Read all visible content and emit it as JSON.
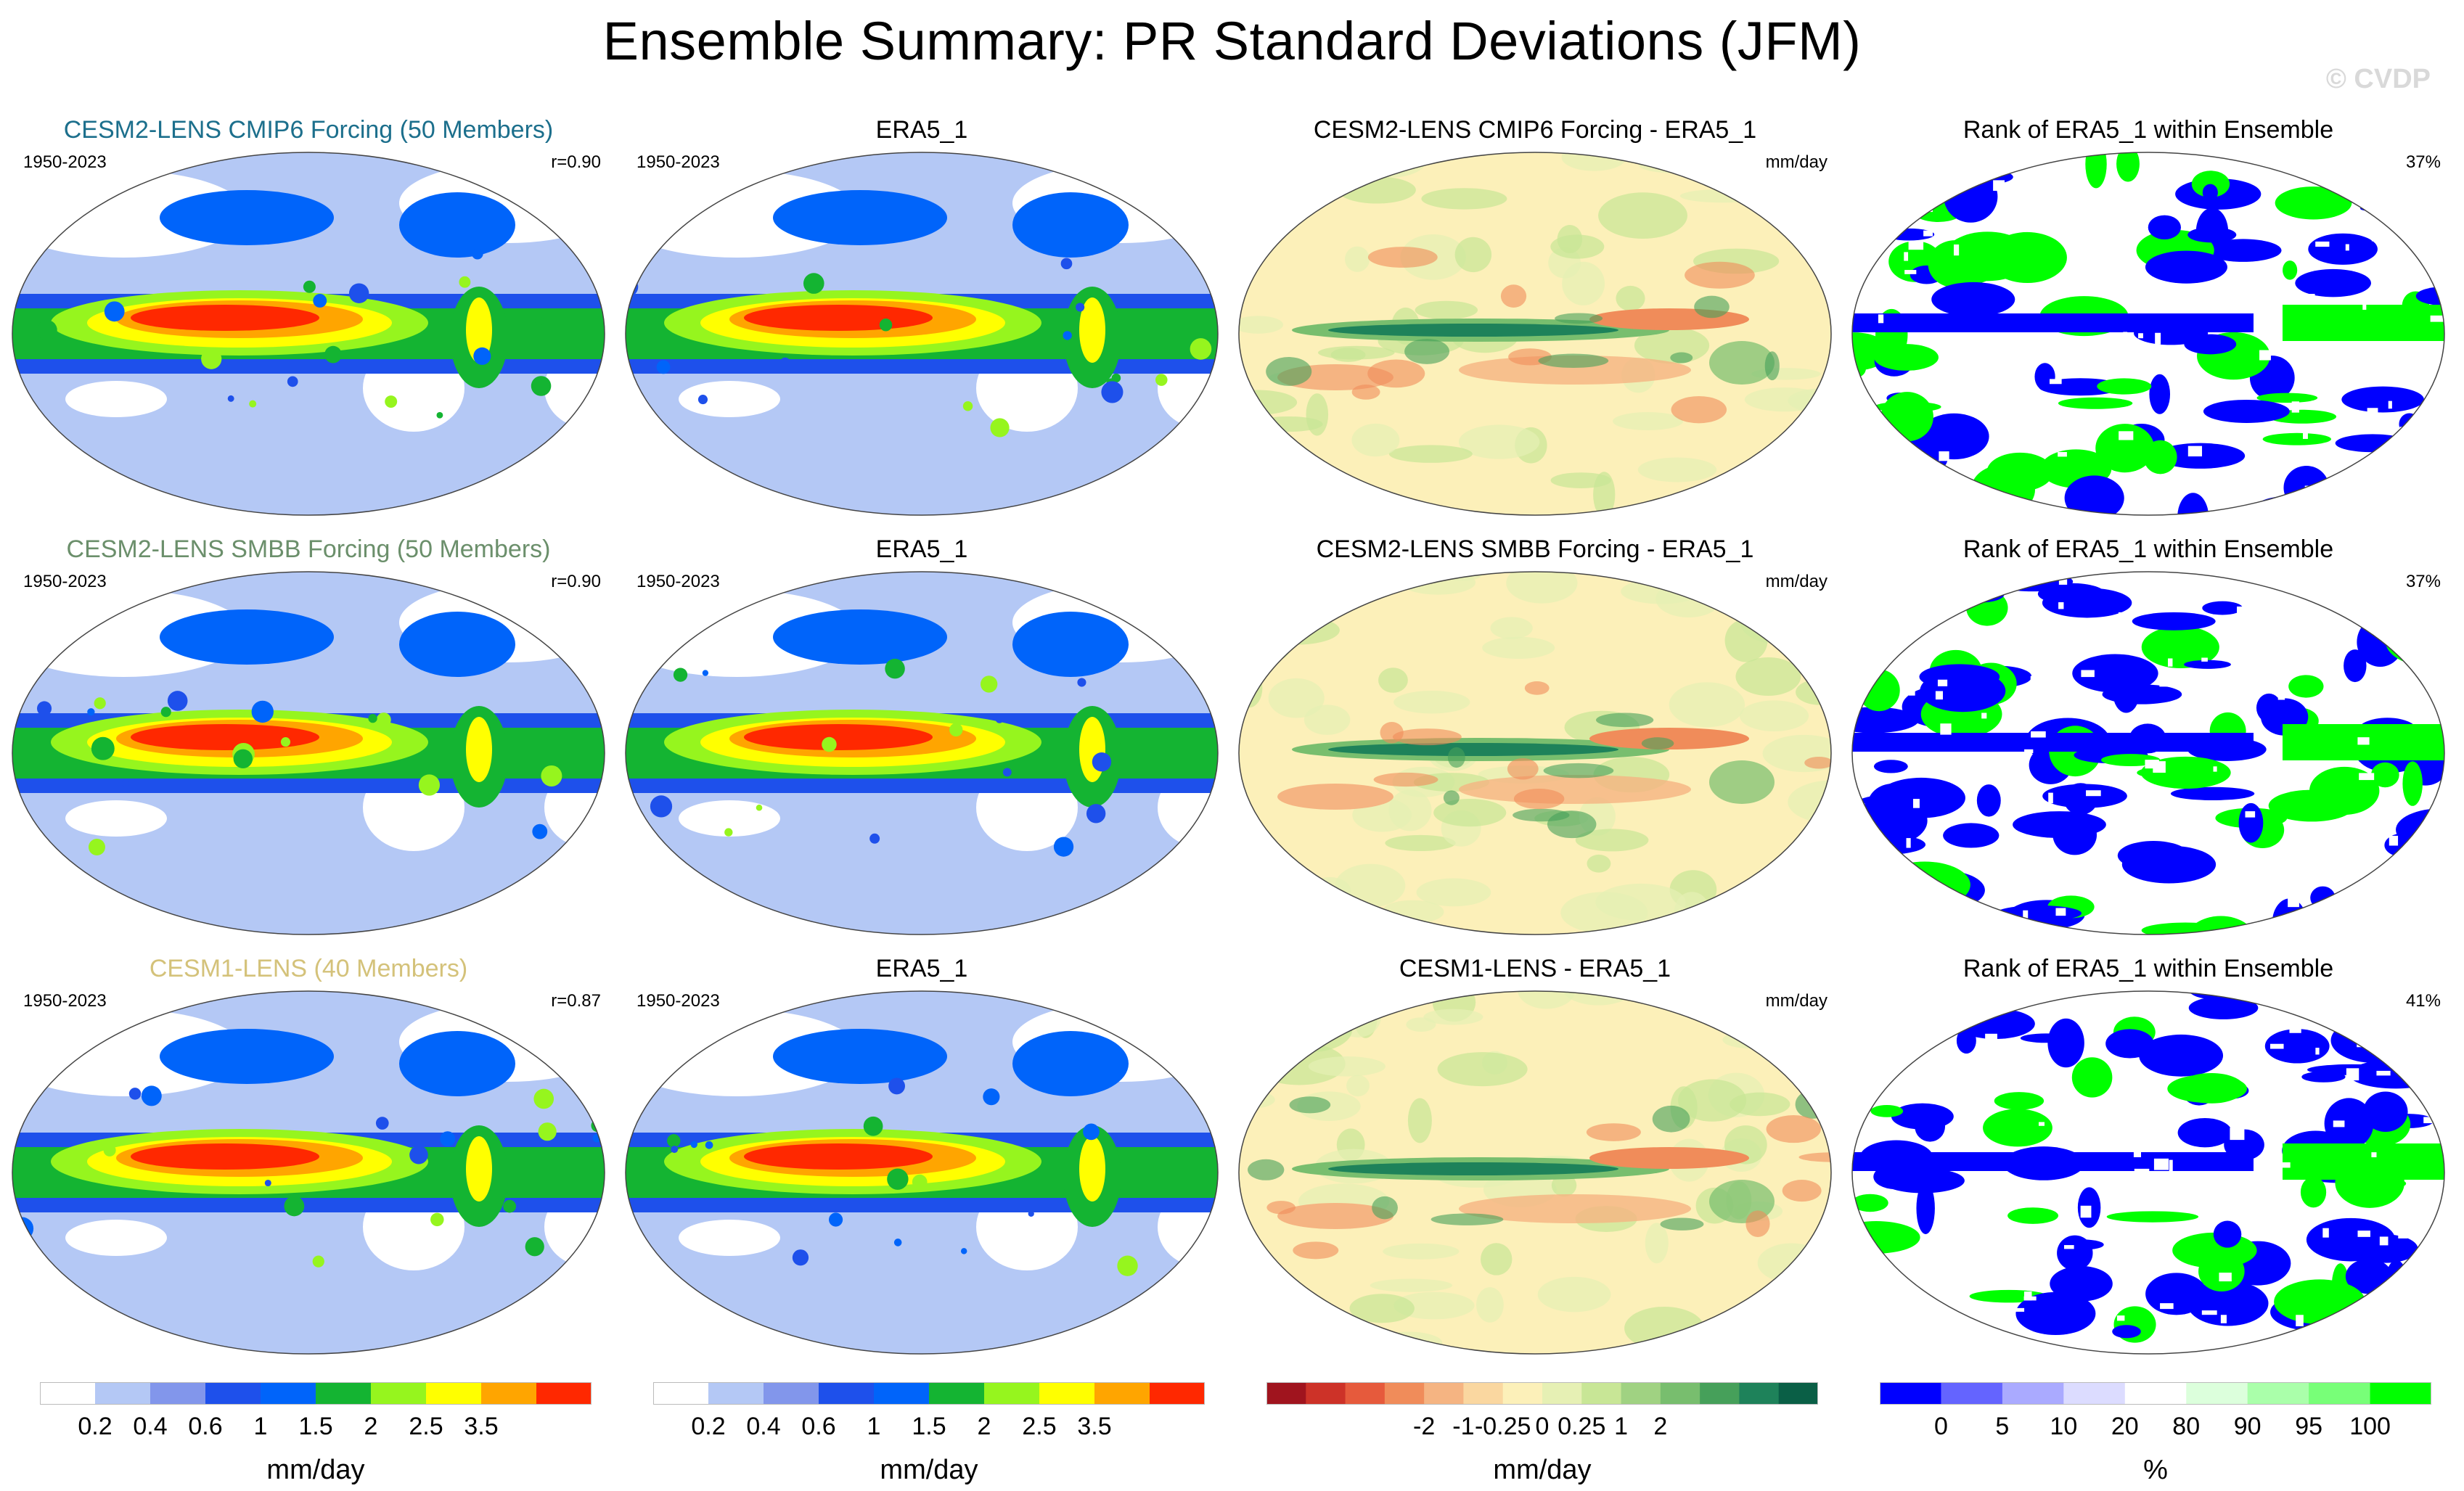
{
  "title": "Ensemble Summary: PR Standard Deviations (JFM)",
  "watermark": "© CVDP",
  "colors": {
    "seq": [
      "#ffffff",
      "#b4c8f5",
      "#8296eb",
      "#1e50eb",
      "#0064fa",
      "#14b432",
      "#96f51e",
      "#ffff00",
      "#ffa500",
      "#ff2800"
    ],
    "div": [
      "#a0141e",
      "#cd3228",
      "#e65a3c",
      "#f08c5a",
      "#f5b482",
      "#fad7a0",
      "#fcf0b9",
      "#e6f0b4",
      "#c8e696",
      "#a0d282",
      "#78be6e",
      "#46a05a",
      "#1e825a",
      "#0a5f46"
    ],
    "rank": [
      "#0000ff",
      "#6464ff",
      "#aaaaff",
      "#dcdcff",
      "#ffffff",
      "#dcffdc",
      "#aaffaa",
      "#78ff78",
      "#00ff00"
    ],
    "title_blue": "#1c6f8c",
    "title_green": "#6b8f6b",
    "title_tan": "#d4c27a"
  },
  "rows": [
    {
      "model_title": "CESM2-LENS CMIP6 Forcing (50 Members)",
      "model_period": "1950-2023",
      "model_r": "r=0.90",
      "obs_title": "ERA5_1",
      "obs_period": "1950-2023",
      "diff_title": "CESM2-LENS CMIP6 Forcing - ERA5_1",
      "diff_units": "mm/day",
      "rank_title": "Rank of ERA5_1 within Ensemble",
      "rank_pct": "37%"
    },
    {
      "model_title": "CESM2-LENS SMBB Forcing (50 Members)",
      "model_period": "1950-2023",
      "model_r": "r=0.90",
      "obs_title": "ERA5_1",
      "obs_period": "1950-2023",
      "diff_title": "CESM2-LENS SMBB Forcing - ERA5_1",
      "diff_units": "mm/day",
      "rank_title": "Rank of ERA5_1 within Ensemble",
      "rank_pct": "37%"
    },
    {
      "model_title": "CESM1-LENS (40 Members)",
      "model_period": "1950-2023",
      "model_r": "r=0.87",
      "obs_title": "ERA5_1",
      "obs_period": "1950-2023",
      "diff_title": "CESM1-LENS - ERA5_1",
      "diff_units": "mm/day",
      "rank_title": "Rank of ERA5_1 within Ensemble",
      "rank_pct": "41%"
    }
  ],
  "colorbars": [
    {
      "ticks": [
        "0.2",
        "0.4",
        "0.6",
        "1",
        "1.5",
        "2",
        "2.5",
        "3.5"
      ],
      "units": "mm/day"
    },
    {
      "ticks": [
        "0.2",
        "0.4",
        "0.6",
        "1",
        "1.5",
        "2",
        "2.5",
        "3.5"
      ],
      "units": "mm/day"
    },
    {
      "ticks": [
        "-2",
        "-1",
        "-0.25",
        "0",
        "0.25",
        "1",
        "2"
      ],
      "units": "mm/day"
    },
    {
      "ticks": [
        "0",
        "5",
        "10",
        "20",
        "80",
        "90",
        "95",
        "100"
      ],
      "units": "%"
    }
  ]
}
